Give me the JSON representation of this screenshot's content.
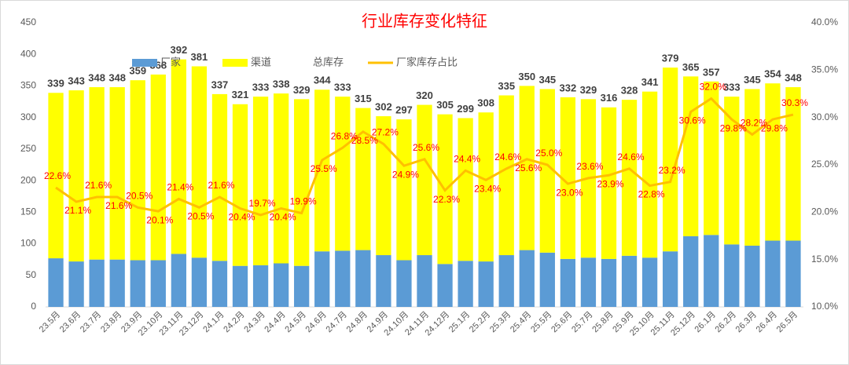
{
  "chart_data": {
    "type": "bar_line",
    "title": "行业库存变化特征",
    "categories": [
      "23.5月",
      "23.6月",
      "23.7月",
      "23.8月",
      "23.9月",
      "23.10月",
      "23.11月",
      "23.12月",
      "24.1月",
      "24.2月",
      "24.3月",
      "24.4月",
      "24.5月",
      "24.6月",
      "24.7月",
      "24.8月",
      "24.9月",
      "24.10月",
      "24.11月",
      "24.12月",
      "25.1月",
      "25.2月",
      "25.3月",
      "25.4月",
      "25.5月",
      "25.6月",
      "25.7月",
      "25.8月",
      "25.9月",
      "25.10月",
      "25.11月",
      "25.12月",
      "26.1月",
      "26.2月",
      "26.3月",
      "26.4月",
      "26.5月"
    ],
    "series": [
      {
        "name": "厂家",
        "kind": "bar",
        "color": "#5b9bd5",
        "values": [
          77,
          72,
          75,
          75,
          74,
          74,
          84,
          78,
          73,
          65,
          66,
          69,
          65,
          88,
          89,
          90,
          82,
          74,
          82,
          68,
          73,
          72,
          82,
          90,
          86,
          76,
          78,
          76,
          81,
          78,
          88,
          112,
          114,
          99,
          97,
          105,
          105
        ]
      },
      {
        "name": "渠道",
        "kind": "bar",
        "color": "#ffff00",
        "values": [
          262,
          271,
          273,
          273,
          285,
          294,
          308,
          303,
          264,
          256,
          267,
          269,
          264,
          256,
          244,
          225,
          220,
          223,
          238,
          237,
          226,
          236,
          253,
          260,
          259,
          256,
          251,
          240,
          247,
          263,
          291,
          253,
          243,
          234,
          248,
          249,
          243
        ]
      },
      {
        "name": "总库存",
        "kind": "label",
        "color": "#404040",
        "values": [
          339,
          343,
          348,
          348,
          359,
          368,
          392,
          381,
          337,
          321,
          333,
          338,
          329,
          344,
          333,
          315,
          302,
          297,
          320,
          305,
          299,
          308,
          335,
          350,
          345,
          332,
          329,
          316,
          328,
          341,
          379,
          365,
          357,
          333,
          345,
          354,
          348
        ]
      },
      {
        "name": "厂家库存占比",
        "kind": "line",
        "axis": "y2",
        "color": "#ffc000",
        "values": [
          22.6,
          21.1,
          21.6,
          21.6,
          20.5,
          20.1,
          21.4,
          20.5,
          21.6,
          20.4,
          19.7,
          20.4,
          19.9,
          25.5,
          26.8,
          28.5,
          27.2,
          24.9,
          25.6,
          22.3,
          24.4,
          23.4,
          24.6,
          25.6,
          25.0,
          23.0,
          23.6,
          23.9,
          24.6,
          22.8,
          23.2,
          30.6,
          32.0,
          29.8,
          28.2,
          29.8,
          30.3
        ],
        "value_labels": [
          "22.6%",
          "21.1%",
          "21.6%",
          "21.6%",
          "20.5%",
          "20.1%",
          "21.4%",
          "20.5%",
          "21.6%",
          "20.4%",
          "19.7%",
          "20.4%",
          "19.9%",
          "25.5%",
          "26.8%",
          "28.5%",
          "27.2%",
          "24.9%",
          "25.6%",
          "22.3%",
          "24.4%",
          "23.4%",
          "24.6%",
          "25.6%",
          "25.0%",
          "23.0%",
          "23.6%",
          "23.9%",
          "24.6%",
          "22.8%",
          "23.2%",
          "30.6%",
          "32.0%",
          "29.8%",
          "28.2%",
          "29.8%",
          "30.3%"
        ]
      }
    ],
    "ylim": [
      0,
      450
    ],
    "yticks": [
      0,
      50,
      100,
      150,
      200,
      250,
      300,
      350,
      400,
      450
    ],
    "y2lim": [
      10,
      40
    ],
    "y2ticks": [
      {
        "value": 10,
        "label": "10.0%"
      },
      {
        "value": 15,
        "label": "15.0%"
      },
      {
        "value": 20,
        "label": "20.0%"
      },
      {
        "value": 25,
        "label": "25.0%"
      },
      {
        "value": 30,
        "label": "30.0%"
      },
      {
        "value": 35,
        "label": "35.0%"
      },
      {
        "value": 40,
        "label": "40.0%"
      }
    ],
    "grid": false
  }
}
